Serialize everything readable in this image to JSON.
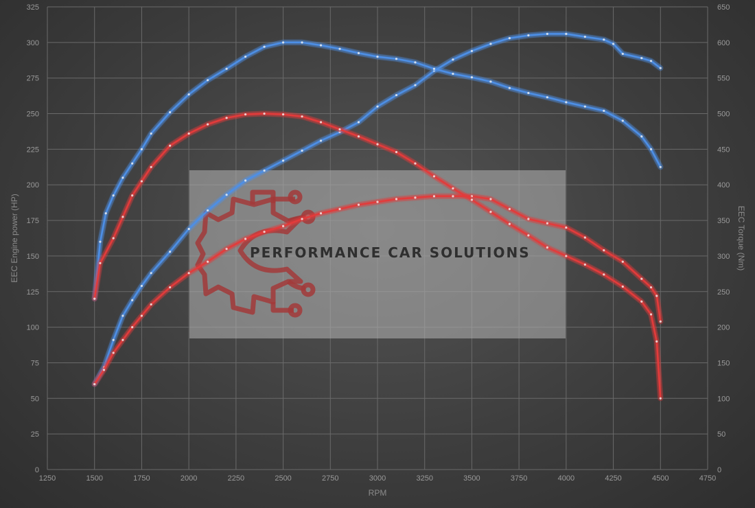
{
  "chart_data": {
    "type": "line",
    "title": "",
    "xlabel": "RPM",
    "ylabel_left": "EEC Engine power (HP)",
    "ylabel_right": "EEC Torque (Nm)",
    "xlim": [
      1250,
      4750
    ],
    "ylim_left": [
      0,
      325
    ],
    "ylim_right": [
      0,
      650
    ],
    "x_ticks": [
      1250,
      1500,
      1750,
      2000,
      2250,
      2500,
      2750,
      3000,
      3250,
      3500,
      3750,
      4000,
      4250,
      4500,
      4750
    ],
    "y_ticks_left": [
      0,
      25,
      50,
      75,
      100,
      125,
      150,
      175,
      200,
      225,
      250,
      275,
      300,
      325
    ],
    "y_ticks_right": [
      0,
      50,
      100,
      150,
      200,
      250,
      300,
      350,
      400,
      450,
      500,
      550,
      600,
      650
    ],
    "grid": true,
    "legend": "none",
    "series": [
      {
        "axis": "left",
        "color": "#4d8fe6",
        "points": [
          [
            1500,
            60
          ],
          [
            1550,
            72
          ],
          [
            1600,
            91
          ],
          [
            1650,
            108
          ],
          [
            1700,
            119
          ],
          [
            1750,
            129
          ],
          [
            1800,
            138
          ],
          [
            1900,
            153
          ],
          [
            2000,
            169
          ],
          [
            2100,
            182
          ],
          [
            2200,
            193
          ],
          [
            2300,
            203
          ],
          [
            2400,
            210
          ],
          [
            2500,
            217
          ],
          [
            2600,
            224
          ],
          [
            2700,
            231
          ],
          [
            2800,
            237
          ],
          [
            2900,
            244
          ],
          [
            3000,
            255
          ],
          [
            3100,
            263
          ],
          [
            3200,
            270
          ],
          [
            3300,
            280
          ],
          [
            3400,
            288
          ],
          [
            3500,
            294
          ],
          [
            3600,
            299
          ],
          [
            3700,
            303
          ],
          [
            3800,
            305
          ],
          [
            3900,
            306
          ],
          [
            4000,
            306
          ],
          [
            4100,
            304
          ],
          [
            4200,
            302
          ],
          [
            4250,
            299
          ],
          [
            4300,
            292
          ],
          [
            4400,
            289
          ],
          [
            4450,
            287
          ],
          [
            4500,
            282
          ]
        ]
      },
      {
        "axis": "right",
        "color": "#4d8fe6",
        "points": [
          [
            1500,
            240
          ],
          [
            1530,
            320
          ],
          [
            1560,
            360
          ],
          [
            1600,
            385
          ],
          [
            1650,
            410
          ],
          [
            1700,
            430
          ],
          [
            1750,
            450
          ],
          [
            1800,
            472
          ],
          [
            1900,
            502
          ],
          [
            2000,
            527
          ],
          [
            2100,
            547
          ],
          [
            2200,
            563
          ],
          [
            2300,
            580
          ],
          [
            2400,
            594
          ],
          [
            2500,
            600
          ],
          [
            2600,
            600
          ],
          [
            2700,
            596
          ],
          [
            2800,
            591
          ],
          [
            2900,
            585
          ],
          [
            3000,
            580
          ],
          [
            3100,
            577
          ],
          [
            3200,
            572
          ],
          [
            3300,
            563
          ],
          [
            3400,
            556
          ],
          [
            3500,
            551
          ],
          [
            3600,
            545
          ],
          [
            3700,
            536
          ],
          [
            3800,
            529
          ],
          [
            3900,
            523
          ],
          [
            4000,
            516
          ],
          [
            4100,
            510
          ],
          [
            4200,
            504
          ],
          [
            4300,
            490
          ],
          [
            4400,
            468
          ],
          [
            4450,
            450
          ],
          [
            4500,
            425
          ]
        ]
      },
      {
        "axis": "left",
        "color": "#e33a3a",
        "points": [
          [
            1500,
            60
          ],
          [
            1550,
            70
          ],
          [
            1600,
            82
          ],
          [
            1650,
            91
          ],
          [
            1700,
            100
          ],
          [
            1750,
            108
          ],
          [
            1800,
            116
          ],
          [
            1900,
            128
          ],
          [
            2000,
            138
          ],
          [
            2100,
            146
          ],
          [
            2200,
            155
          ],
          [
            2300,
            162
          ],
          [
            2400,
            167
          ],
          [
            2500,
            171
          ],
          [
            2600,
            176
          ],
          [
            2700,
            180
          ],
          [
            2800,
            183
          ],
          [
            2900,
            186
          ],
          [
            3000,
            188
          ],
          [
            3100,
            190
          ],
          [
            3200,
            191
          ],
          [
            3300,
            192
          ],
          [
            3400,
            192
          ],
          [
            3500,
            192
          ],
          [
            3600,
            190
          ],
          [
            3700,
            183
          ],
          [
            3800,
            176
          ],
          [
            3900,
            173
          ],
          [
            4000,
            170
          ],
          [
            4100,
            163
          ],
          [
            4200,
            154
          ],
          [
            4300,
            146
          ],
          [
            4400,
            134
          ],
          [
            4450,
            128
          ],
          [
            4480,
            122
          ],
          [
            4500,
            104
          ]
        ]
      },
      {
        "axis": "right",
        "color": "#e33a3a",
        "points": [
          [
            1500,
            240
          ],
          [
            1530,
            290
          ],
          [
            1600,
            325
          ],
          [
            1650,
            355
          ],
          [
            1700,
            385
          ],
          [
            1750,
            405
          ],
          [
            1800,
            425
          ],
          [
            1900,
            455
          ],
          [
            2000,
            472
          ],
          [
            2100,
            485
          ],
          [
            2200,
            494
          ],
          [
            2300,
            499
          ],
          [
            2400,
            500
          ],
          [
            2500,
            499
          ],
          [
            2600,
            496
          ],
          [
            2700,
            488
          ],
          [
            2800,
            478
          ],
          [
            2900,
            468
          ],
          [
            3000,
            457
          ],
          [
            3100,
            446
          ],
          [
            3200,
            430
          ],
          [
            3300,
            412
          ],
          [
            3400,
            395
          ],
          [
            3500,
            379
          ],
          [
            3600,
            362
          ],
          [
            3700,
            345
          ],
          [
            3800,
            329
          ],
          [
            3900,
            312
          ],
          [
            4000,
            300
          ],
          [
            4100,
            288
          ],
          [
            4200,
            274
          ],
          [
            4300,
            257
          ],
          [
            4400,
            236
          ],
          [
            4450,
            218
          ],
          [
            4480,
            180
          ],
          [
            4500,
            100
          ]
        ]
      }
    ],
    "watermark": "PERFORMANCE CAR SOLUTIONS"
  }
}
